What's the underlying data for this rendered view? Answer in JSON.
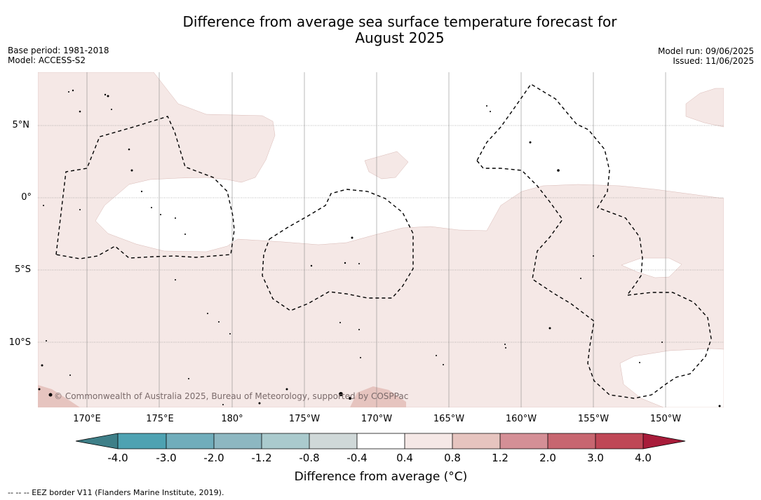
{
  "title": {
    "line1": "Difference from average sea surface temperature forecast for",
    "line2": "August 2025"
  },
  "meta_left": {
    "base_period": "Base period: 1981-2018",
    "model": "Model: ACCESS-S2"
  },
  "meta_right": {
    "model_run": "Model run: 09/06/2025",
    "issued": "Issued: 11/06/2025"
  },
  "map": {
    "lat_labels": [
      "5°N",
      "0°",
      "5°S",
      "10°S"
    ],
    "lon_labels": [
      "170°E",
      "175°E",
      "180°",
      "175°W",
      "170°W",
      "165°W",
      "160°W",
      "155°W",
      "150°W"
    ],
    "copyright": "© Commonwealth of Australia 2025, Bureau of Meteorology, supported by COSPPac",
    "colors": {
      "ocean": "#ffffff",
      "anomaly_0_4_0_8": "#f5e8e6",
      "anomaly_0_8_1_2": "#e6c4bf",
      "land": "#333333",
      "eez_border": "#000000"
    }
  },
  "colorbar": {
    "ticks": [
      "-4.0",
      "-3.0",
      "-2.0",
      "-1.2",
      "-0.8",
      "-0.4",
      "0.4",
      "0.8",
      "1.2",
      "2.0",
      "3.0",
      "4.0"
    ],
    "colors": [
      "#3e7f88",
      "#4ea2b2",
      "#70adbb",
      "#8db7c1",
      "#aacacd",
      "#cfd8d8",
      "#ffffff",
      "#f5e8e6",
      "#e6c4bf",
      "#d48f96",
      "#c76670",
      "#bf4756",
      "#a81c3a"
    ],
    "label": "Difference from average (°C)"
  },
  "legend": {
    "eez": "--  --  -- EEZ border V11 (Flanders Marine Institute, 2019)."
  }
}
